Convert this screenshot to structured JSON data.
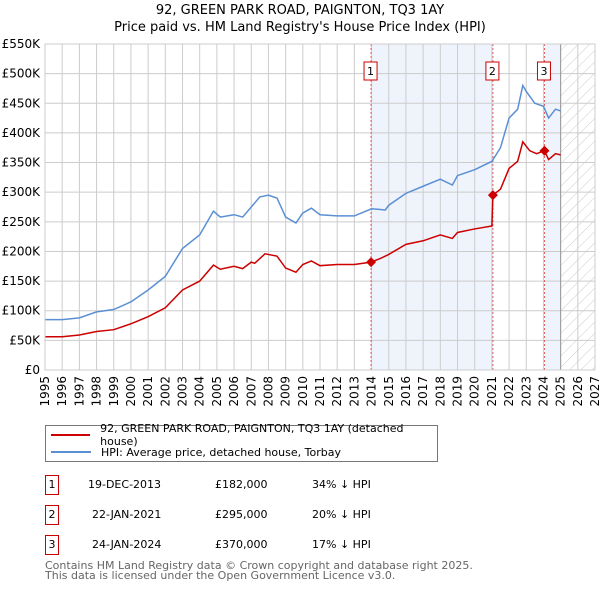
{
  "title": "92, GREEN PARK ROAD, PAIGNTON, TQ3 1AY",
  "subtitle": "Price paid vs. HM Land Registry's House Price Index (HPI)",
  "chart_data": {
    "type": "line",
    "title": "92, GREEN PARK ROAD, PAIGNTON, TQ3 1AY",
    "xlim": [
      1995,
      2027
    ],
    "ylim": [
      0,
      550000
    ],
    "yticks": [
      0,
      50000,
      100000,
      150000,
      200000,
      250000,
      300000,
      350000,
      400000,
      450000,
      500000,
      550000
    ],
    "ytick_labels": [
      "£0",
      "£50K",
      "£100K",
      "£150K",
      "£200K",
      "£250K",
      "£300K",
      "£350K",
      "£400K",
      "£450K",
      "£500K",
      "£550K"
    ],
    "xticks": [
      1995,
      1996,
      1997,
      1998,
      1999,
      2000,
      2001,
      2002,
      2003,
      2004,
      2005,
      2006,
      2007,
      2008,
      2009,
      2010,
      2011,
      2012,
      2013,
      2014,
      2015,
      2016,
      2017,
      2018,
      2019,
      2020,
      2021,
      2022,
      2023,
      2024,
      2025,
      2026,
      2027
    ],
    "grid": true,
    "colors": {
      "property": "#cc0000",
      "hpi": "#5b8fd4",
      "shade": "#eef3fc"
    },
    "series": [
      {
        "name": "92, GREEN PARK ROAD, PAIGNTON, TQ3 1AY (detached house)",
        "color": "#cc0000",
        "x": [
          1995,
          1996,
          1997,
          1998,
          1999,
          2000,
          2001,
          2002,
          2003,
          2004,
          2004.8,
          2005.2,
          2006,
          2006.5,
          2007,
          2007.2,
          2007.8,
          2008.5,
          2009,
          2009.6,
          2010,
          2010.5,
          2011,
          2012,
          2013,
          2013.97,
          2014.5,
          2015,
          2016,
          2017,
          2018,
          2018.7,
          2019,
          2020,
          2021,
          2021.06,
          2021.5,
          2022,
          2022.5,
          2022.8,
          2023.2,
          2023.6,
          2024.06,
          2024.3,
          2024.7,
          2025
        ],
        "y": [
          56000,
          56000,
          59000,
          65000,
          68000,
          78000,
          90000,
          105000,
          135000,
          150000,
          177000,
          170000,
          175000,
          171000,
          182000,
          180000,
          196000,
          192000,
          172000,
          165000,
          178000,
          184000,
          176000,
          178000,
          178000,
          182000,
          188000,
          195000,
          212000,
          218000,
          228000,
          222000,
          232000,
          238000,
          243000,
          295000,
          305000,
          340000,
          352000,
          385000,
          370000,
          365000,
          370000,
          355000,
          365000,
          363000
        ]
      },
      {
        "name": "HPI: Average price, detached house, Torbay",
        "color": "#5b8fd4",
        "x": [
          1995,
          1996,
          1997,
          1998,
          1999,
          2000,
          2001,
          2002,
          2003,
          2004,
          2004.8,
          2005.2,
          2006,
          2006.5,
          2007,
          2007.5,
          2008,
          2008.5,
          2009,
          2009.6,
          2010,
          2010.5,
          2011,
          2012,
          2013,
          2014,
          2014.8,
          2015,
          2016,
          2017,
          2018,
          2018.7,
          2019,
          2020,
          2021,
          2021.5,
          2022,
          2022.5,
          2022.8,
          2023,
          2023.5,
          2024,
          2024.3,
          2024.7,
          2025
        ],
        "y": [
          85000,
          85000,
          88000,
          98000,
          102000,
          115000,
          135000,
          158000,
          205000,
          228000,
          268000,
          258000,
          262000,
          258000,
          275000,
          292000,
          295000,
          290000,
          258000,
          248000,
          265000,
          273000,
          262000,
          260000,
          260000,
          272000,
          270000,
          278000,
          298000,
          310000,
          322000,
          312000,
          328000,
          338000,
          352000,
          375000,
          425000,
          440000,
          480000,
          470000,
          450000,
          445000,
          425000,
          440000,
          437000
        ]
      }
    ],
    "sales": [
      {
        "label": "1",
        "x": 2013.97,
        "y": 182000
      },
      {
        "label": "2",
        "x": 2021.06,
        "y": 295000
      },
      {
        "label": "3",
        "x": 2024.06,
        "y": 370000
      }
    ],
    "shaded_ranges": [
      [
        2013.97,
        2021.06
      ],
      [
        2024.06,
        2025.0
      ]
    ],
    "forecast_hatch": [
      2025.0,
      2027
    ]
  },
  "legend": [
    {
      "label": "92, GREEN PARK ROAD, PAIGNTON, TQ3 1AY (detached house)",
      "color": "#cc0000"
    },
    {
      "label": "HPI: Average price, detached house, Torbay",
      "color": "#5b8fd4"
    }
  ],
  "transactions": [
    {
      "num": "1",
      "date": "19-DEC-2013",
      "price": "£182,000",
      "hpi": "34% ↓ HPI"
    },
    {
      "num": "2",
      "date": "22-JAN-2021",
      "price": "£295,000",
      "hpi": "20% ↓ HPI"
    },
    {
      "num": "3",
      "date": "24-JAN-2024",
      "price": "£370,000",
      "hpi": "17% ↓ HPI"
    }
  ],
  "footer": [
    "Contains HM Land Registry data © Crown copyright and database right 2025.",
    "This data is licensed under the Open Government Licence v3.0."
  ]
}
